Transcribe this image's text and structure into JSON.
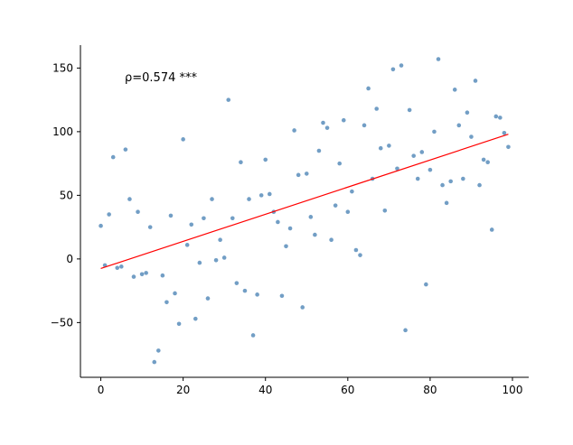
{
  "chart_data": {
    "type": "scatter",
    "annotation": "ρ=0.574 ***",
    "xlim": [
      -4.95,
      103.95
    ],
    "ylim": [
      -93,
      168
    ],
    "x_ticks": [
      0,
      20,
      40,
      60,
      80,
      100
    ],
    "y_ticks": [
      -50,
      0,
      50,
      100,
      150
    ],
    "point_color": "#4f86b6",
    "line_color": "#ff0000",
    "grid": false,
    "x": [
      0,
      1,
      2,
      3,
      4,
      5,
      6,
      7,
      8,
      9,
      10,
      11,
      12,
      13,
      14,
      15,
      16,
      17,
      18,
      19,
      20,
      21,
      22,
      23,
      24,
      25,
      26,
      27,
      28,
      29,
      30,
      31,
      32,
      33,
      34,
      35,
      36,
      37,
      38,
      39,
      40,
      41,
      42,
      43,
      44,
      45,
      46,
      47,
      48,
      49,
      50,
      51,
      52,
      53,
      54,
      55,
      56,
      57,
      58,
      59,
      60,
      61,
      62,
      63,
      64,
      65,
      66,
      67,
      68,
      69,
      70,
      71,
      72,
      73,
      74,
      75,
      76,
      77,
      78,
      79,
      80,
      81,
      82,
      83,
      84,
      85,
      86,
      87,
      88,
      89,
      90,
      91,
      92,
      93,
      94,
      95,
      96,
      97,
      98,
      99
    ],
    "y": [
      26,
      -5,
      35,
      80,
      -7,
      -6,
      86,
      47,
      -14,
      37,
      -12,
      -11,
      25,
      -81,
      -72,
      -13,
      -34,
      34,
      -27,
      -51,
      94,
      11,
      27,
      -47,
      -3,
      32,
      -31,
      47,
      -1,
      15,
      1,
      125,
      32,
      -19,
      76,
      -25,
      47,
      -60,
      -28,
      50,
      78,
      51,
      37,
      29,
      -29,
      10,
      24,
      101,
      66,
      -38,
      67,
      33,
      19,
      85,
      107,
      103,
      15,
      42,
      75,
      109,
      37,
      53,
      7,
      3,
      105,
      134,
      63,
      118,
      87,
      38,
      89,
      149,
      71,
      152,
      -56,
      117,
      81,
      63,
      84,
      -20,
      70,
      100,
      157,
      58,
      44,
      61,
      133,
      105,
      63,
      115,
      96,
      140,
      58,
      78,
      76,
      23,
      112,
      111,
      99,
      88
    ],
    "fit_line": {
      "x": [
        0,
        99
      ],
      "y": [
        -7.5,
        98
      ]
    }
  }
}
